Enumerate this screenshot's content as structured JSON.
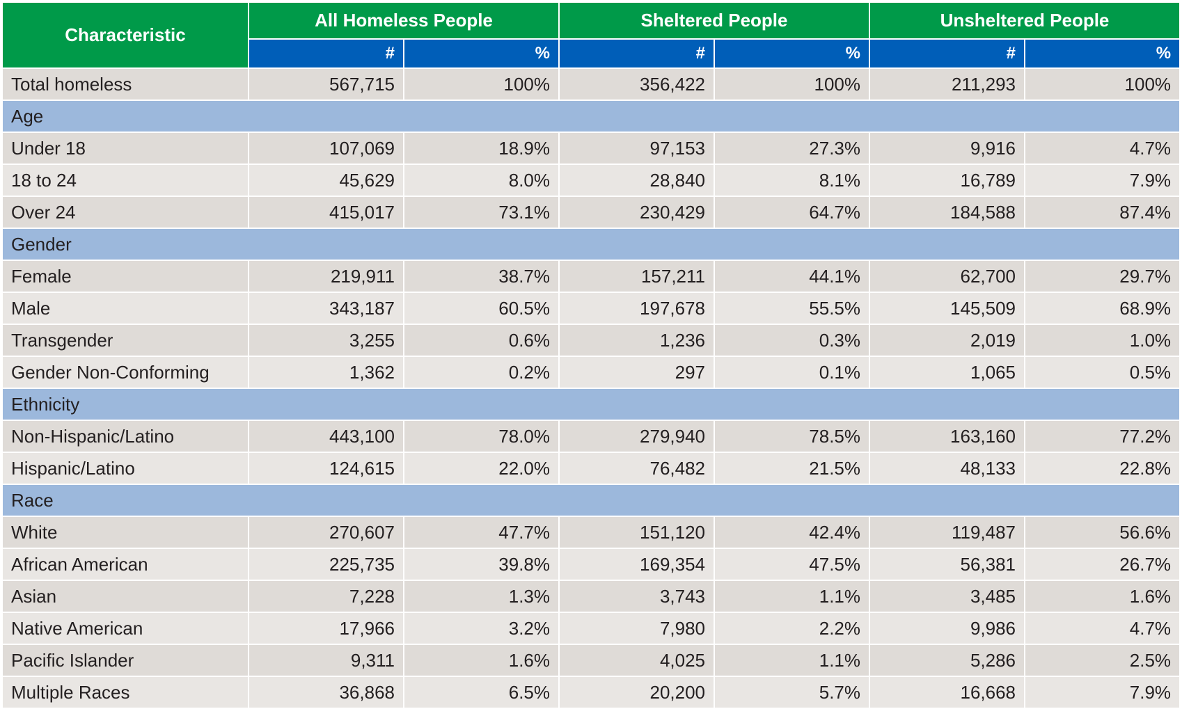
{
  "header": {
    "characteristic": "Characteristic",
    "groups": [
      "All Homeless People",
      "Sheltered People",
      "Unsheltered People"
    ],
    "sub": [
      "#",
      "%",
      "#",
      "%",
      "#",
      "%"
    ]
  },
  "colors": {
    "header_green": "#009A49",
    "subheader_blue": "#005EB8",
    "section_blue": "#9CB8DC",
    "row_gray": "#DFDBD7",
    "row_light": "#E9E6E3"
  },
  "rows": [
    {
      "type": "data",
      "label": "Total homeless",
      "values": [
        "567,715",
        "100%",
        "356,422",
        "100%",
        "211,293",
        "100%"
      ]
    },
    {
      "type": "section",
      "label": "Age"
    },
    {
      "type": "data",
      "label": "Under 18",
      "values": [
        "107,069",
        "18.9%",
        "97,153",
        "27.3%",
        "9,916",
        "4.7%"
      ]
    },
    {
      "type": "data",
      "label": "18 to 24",
      "values": [
        "45,629",
        "8.0%",
        "28,840",
        "8.1%",
        "16,789",
        "7.9%"
      ]
    },
    {
      "type": "data",
      "label": "Over 24",
      "values": [
        "415,017",
        "73.1%",
        "230,429",
        "64.7%",
        "184,588",
        "87.4%"
      ]
    },
    {
      "type": "section",
      "label": "Gender"
    },
    {
      "type": "data",
      "label": "Female",
      "values": [
        "219,911",
        "38.7%",
        "157,211",
        "44.1%",
        "62,700",
        "29.7%"
      ]
    },
    {
      "type": "data",
      "label": "Male",
      "values": [
        "343,187",
        "60.5%",
        "197,678",
        "55.5%",
        "145,509",
        "68.9%"
      ]
    },
    {
      "type": "data",
      "label": "Transgender",
      "values": [
        "3,255",
        "0.6%",
        "1,236",
        "0.3%",
        "2,019",
        "1.0%"
      ]
    },
    {
      "type": "data",
      "label": "Gender Non-Conforming",
      "values": [
        "1,362",
        "0.2%",
        "297",
        "0.1%",
        "1,065",
        "0.5%"
      ]
    },
    {
      "type": "section",
      "label": "Ethnicity"
    },
    {
      "type": "data",
      "label": "Non-Hispanic/Latino",
      "values": [
        "443,100",
        "78.0%",
        "279,940",
        "78.5%",
        "163,160",
        "77.2%"
      ]
    },
    {
      "type": "data",
      "label": "Hispanic/Latino",
      "values": [
        "124,615",
        "22.0%",
        "76,482",
        "21.5%",
        "48,133",
        "22.8%"
      ]
    },
    {
      "type": "section",
      "label": "Race"
    },
    {
      "type": "data",
      "label": "White",
      "values": [
        "270,607",
        "47.7%",
        "151,120",
        "42.4%",
        "119,487",
        "56.6%"
      ]
    },
    {
      "type": "data",
      "label": "African American",
      "values": [
        "225,735",
        "39.8%",
        "169,354",
        "47.5%",
        "56,381",
        "26.7%"
      ]
    },
    {
      "type": "data",
      "label": "Asian",
      "values": [
        "7,228",
        "1.3%",
        "3,743",
        "1.1%",
        "3,485",
        "1.6%"
      ]
    },
    {
      "type": "data",
      "label": "Native American",
      "values": [
        "17,966",
        "3.2%",
        "7,980",
        "2.2%",
        "9,986",
        "4.7%"
      ]
    },
    {
      "type": "data",
      "label": "Pacific Islander",
      "values": [
        "9,311",
        "1.6%",
        "4,025",
        "1.1%",
        "5,286",
        "2.5%"
      ]
    },
    {
      "type": "data",
      "label": "Multiple Races",
      "values": [
        "36,868",
        "6.5%",
        "20,200",
        "5.7%",
        "16,668",
        "7.9%"
      ]
    }
  ]
}
